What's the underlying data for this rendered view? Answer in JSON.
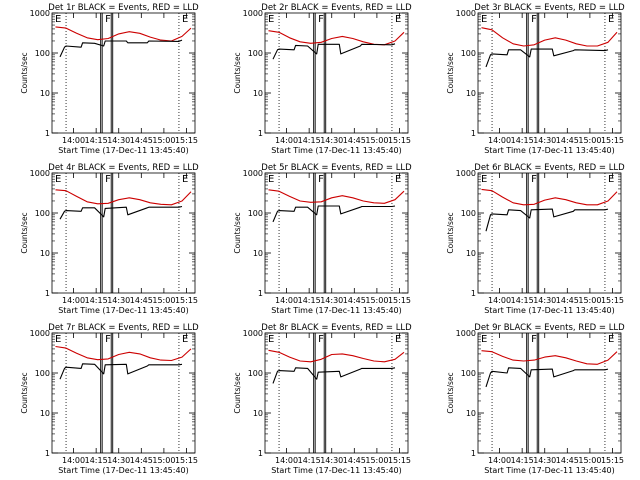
{
  "page": {
    "background": "#ffffff"
  },
  "colors": {
    "events": "#000000",
    "lld": "#cc0000",
    "axis": "#000000"
  },
  "chart_data": [
    {
      "type": "line",
      "title": "Det 1r BLACK = Events, RED = LLD",
      "xlabel": "Start Time (17-Dec-11 13:45:40)",
      "ylabel": "Counts/sec",
      "x_ticks": [
        "14:00",
        "14:15",
        "14:30",
        "14:45",
        "15:00",
        "15:15"
      ],
      "y_ticks": [
        "1",
        "10",
        "100",
        "1000"
      ],
      "ylim": [
        1,
        1000
      ],
      "y_scale": "log",
      "markers": [
        "F",
        "E"
      ],
      "series": [
        {
          "name": "LLD",
          "color": "#cc0000",
          "x": [
            "13:48",
            "13:55",
            "14:02",
            "14:09",
            "14:16",
            "14:23",
            "14:30",
            "14:37",
            "14:44",
            "14:51",
            "14:58",
            "15:05",
            "15:12",
            "15:18"
          ],
          "values": [
            450,
            420,
            310,
            240,
            215,
            230,
            300,
            340,
            310,
            250,
            210,
            200,
            260,
            420
          ]
        },
        {
          "name": "Events",
          "color": "#000000",
          "x": [
            "13:51",
            "13:54",
            "13:55",
            "14:05",
            "14:06",
            "14:14",
            "14:20",
            "14:21",
            "14:35",
            "14:36",
            "14:49",
            "14:50",
            "15:10",
            "15:12"
          ],
          "values": [
            80,
            140,
            150,
            140,
            180,
            175,
            150,
            200,
            200,
            180,
            180,
            200,
            195,
            210
          ]
        }
      ]
    },
    {
      "type": "line",
      "title": "Det 2r BLACK = Events, RED = LLD",
      "xlabel": "Start Time (17-Dec-11 13:45:40)",
      "ylabel": "Counts/sec",
      "x_ticks": [
        "14:00",
        "14:15",
        "14:30",
        "14:45",
        "15:00",
        "15:15"
      ],
      "y_ticks": [
        "1",
        "10",
        "100",
        "1000"
      ],
      "ylim": [
        1,
        1000
      ],
      "y_scale": "log",
      "markers": [
        "F",
        "E"
      ],
      "series": [
        {
          "name": "LLD",
          "color": "#cc0000",
          "x": [
            "13:48",
            "13:55",
            "14:02",
            "14:09",
            "14:16",
            "14:23",
            "14:30",
            "14:37",
            "14:44",
            "14:51",
            "14:58",
            "15:05",
            "15:12",
            "15:18"
          ],
          "values": [
            360,
            330,
            240,
            190,
            175,
            185,
            230,
            260,
            230,
            190,
            165,
            160,
            200,
            330
          ]
        },
        {
          "name": "Events",
          "color": "#000000",
          "x": [
            "13:51",
            "13:54",
            "13:55",
            "14:05",
            "14:06",
            "14:14",
            "14:20",
            "14:21",
            "14:35",
            "14:36",
            "14:49",
            "14:50",
            "15:10",
            "15:12"
          ],
          "values": [
            70,
            120,
            125,
            120,
            155,
            150,
            95,
            165,
            165,
            95,
            150,
            165,
            160,
            170
          ]
        }
      ]
    },
    {
      "type": "line",
      "title": "Det 3r BLACK = Events, RED = LLD",
      "xlabel": "Start Time (17-Dec-11 13:45:40)",
      "ylabel": "Counts/sec",
      "x_ticks": [
        "14:00",
        "14:15",
        "14:30",
        "14:45",
        "15:00",
        "15:15"
      ],
      "y_ticks": [
        "1",
        "10",
        "100",
        "1000"
      ],
      "ylim": [
        1,
        1000
      ],
      "y_scale": "log",
      "markers": [
        "F",
        "E"
      ],
      "series": [
        {
          "name": "LLD",
          "color": "#cc0000",
          "x": [
            "13:48",
            "13:55",
            "14:02",
            "14:09",
            "14:16",
            "14:23",
            "14:30",
            "14:37",
            "14:44",
            "14:51",
            "14:58",
            "15:05",
            "15:12",
            "15:18"
          ],
          "values": [
            430,
            380,
            240,
            170,
            150,
            160,
            210,
            240,
            210,
            170,
            150,
            150,
            185,
            330
          ]
        },
        {
          "name": "Events",
          "color": "#000000",
          "x": [
            "13:51",
            "13:54",
            "13:55",
            "14:05",
            "14:06",
            "14:14",
            "14:20",
            "14:21",
            "14:35",
            "14:36",
            "14:49",
            "14:50",
            "15:10",
            "15:12"
          ],
          "values": [
            45,
            90,
            95,
            90,
            120,
            120,
            80,
            125,
            125,
            85,
            115,
            120,
            115,
            120
          ]
        }
      ]
    },
    {
      "type": "line",
      "title": "Det 4r BLACK = Events, RED = LLD",
      "xlabel": "Start Time (17-Dec-11 13:45:40)",
      "ylabel": "Counts/sec",
      "x_ticks": [
        "14:00",
        "14:15",
        "14:30",
        "14:45",
        "15:00",
        "15:15"
      ],
      "y_ticks": [
        "1",
        "10",
        "100",
        "1000"
      ],
      "ylim": [
        1,
        1000
      ],
      "y_scale": "log",
      "markers": [
        "F",
        "E"
      ],
      "series": [
        {
          "name": "LLD",
          "color": "#cc0000",
          "x": [
            "13:48",
            "13:55",
            "14:02",
            "14:09",
            "14:16",
            "14:23",
            "14:30",
            "14:37",
            "14:44",
            "14:51",
            "14:58",
            "15:05",
            "15:12",
            "15:18"
          ],
          "values": [
            380,
            360,
            260,
            190,
            170,
            175,
            215,
            240,
            215,
            180,
            165,
            160,
            200,
            340
          ]
        },
        {
          "name": "Events",
          "color": "#000000",
          "x": [
            "13:51",
            "13:54",
            "13:55",
            "14:05",
            "14:06",
            "14:14",
            "14:20",
            "14:21",
            "14:35",
            "14:36",
            "14:49",
            "14:50",
            "15:10",
            "15:12"
          ],
          "values": [
            70,
            110,
            115,
            110,
            135,
            135,
            80,
            130,
            140,
            90,
            135,
            140,
            140,
            145
          ]
        }
      ]
    },
    {
      "type": "line",
      "title": "Det 5r BLACK = Events, RED = LLD",
      "xlabel": "Start Time (17-Dec-11 13:45:40)",
      "ylabel": "Counts/sec",
      "x_ticks": [
        "14:00",
        "14:15",
        "14:30",
        "14:45",
        "15:00",
        "15:15"
      ],
      "y_ticks": [
        "1",
        "10",
        "100",
        "1000"
      ],
      "ylim": [
        1,
        1000
      ],
      "y_scale": "log",
      "markers": [
        "F",
        "E"
      ],
      "series": [
        {
          "name": "LLD",
          "color": "#cc0000",
          "x": [
            "13:48",
            "13:55",
            "14:02",
            "14:09",
            "14:16",
            "14:23",
            "14:30",
            "14:37",
            "14:44",
            "14:51",
            "14:58",
            "15:05",
            "15:12",
            "15:18"
          ],
          "values": [
            380,
            350,
            260,
            200,
            185,
            190,
            240,
            270,
            240,
            200,
            180,
            175,
            215,
            350
          ]
        },
        {
          "name": "Events",
          "color": "#000000",
          "x": [
            "13:51",
            "13:54",
            "13:55",
            "14:05",
            "14:06",
            "14:14",
            "14:20",
            "14:21",
            "14:35",
            "14:36",
            "14:49",
            "14:50",
            "15:10",
            "15:12"
          ],
          "values": [
            60,
            110,
            115,
            110,
            140,
            140,
            90,
            150,
            150,
            95,
            140,
            145,
            145,
            150
          ]
        }
      ]
    },
    {
      "type": "line",
      "title": "Det 6r BLACK = Events, RED = LLD",
      "xlabel": "Start Time (17-Dec-11 13:45:40)",
      "ylabel": "Counts/sec",
      "x_ticks": [
        "14:00",
        "14:15",
        "14:30",
        "14:45",
        "15:00",
        "15:15"
      ],
      "y_ticks": [
        "1",
        "10",
        "100",
        "1000"
      ],
      "ylim": [
        1,
        1000
      ],
      "y_scale": "log",
      "markers": [
        "F",
        "E"
      ],
      "series": [
        {
          "name": "LLD",
          "color": "#cc0000",
          "x": [
            "13:48",
            "13:55",
            "14:02",
            "14:09",
            "14:16",
            "14:23",
            "14:30",
            "14:37",
            "14:44",
            "14:51",
            "14:58",
            "15:05",
            "15:12",
            "15:18"
          ],
          "values": [
            390,
            360,
            250,
            180,
            160,
            165,
            210,
            240,
            215,
            180,
            160,
            160,
            200,
            340
          ]
        },
        {
          "name": "Events",
          "color": "#000000",
          "x": [
            "13:51",
            "13:54",
            "13:55",
            "14:05",
            "14:06",
            "14:14",
            "14:20",
            "14:21",
            "14:35",
            "14:36",
            "14:49",
            "14:50",
            "15:10",
            "15:12"
          ],
          "values": [
            35,
            90,
            95,
            90,
            120,
            115,
            75,
            120,
            125,
            80,
            110,
            120,
            120,
            125
          ]
        }
      ]
    },
    {
      "type": "line",
      "title": "Det 7r BLACK = Events, RED = LLD",
      "xlabel": "Start Time (17-Dec-11 13:45:40)",
      "ylabel": "Counts/sec",
      "x_ticks": [
        "14:00",
        "14:15",
        "14:30",
        "14:45",
        "15:00",
        "15:15"
      ],
      "y_ticks": [
        "1",
        "10",
        "100",
        "1000"
      ],
      "ylim": [
        1,
        1000
      ],
      "y_scale": "log",
      "markers": [
        "F",
        "E"
      ],
      "series": [
        {
          "name": "LLD",
          "color": "#cc0000",
          "x": [
            "13:48",
            "13:55",
            "14:02",
            "14:09",
            "14:16",
            "14:23",
            "14:30",
            "14:37",
            "14:44",
            "14:51",
            "14:58",
            "15:05",
            "15:12",
            "15:18"
          ],
          "values": [
            460,
            420,
            310,
            240,
            215,
            225,
            290,
            330,
            300,
            240,
            210,
            205,
            250,
            400
          ]
        },
        {
          "name": "Events",
          "color": "#000000",
          "x": [
            "13:51",
            "13:54",
            "13:55",
            "14:05",
            "14:06",
            "14:14",
            "14:20",
            "14:21",
            "14:35",
            "14:36",
            "14:49",
            "14:50",
            "15:10",
            "15:12"
          ],
          "values": [
            70,
            130,
            140,
            130,
            170,
            165,
            95,
            160,
            165,
            95,
            150,
            160,
            160,
            165
          ]
        }
      ]
    },
    {
      "type": "line",
      "title": "Det 8r BLACK = Events, RED = LLD",
      "xlabel": "Start Time (17-Dec-11 13:45:40)",
      "ylabel": "Counts/sec",
      "x_ticks": [
        "14:00",
        "14:15",
        "14:30",
        "14:45",
        "15:00",
        "15:15"
      ],
      "y_ticks": [
        "1",
        "10",
        "100",
        "1000"
      ],
      "ylim": [
        1,
        1000
      ],
      "y_scale": "log",
      "markers": [
        "F",
        "E"
      ],
      "series": [
        {
          "name": "LLD",
          "color": "#cc0000",
          "x": [
            "13:48",
            "13:55",
            "14:02",
            "14:09",
            "14:16",
            "14:23",
            "14:30",
            "14:37",
            "14:44",
            "14:51",
            "14:58",
            "15:05",
            "15:12",
            "15:18"
          ],
          "values": [
            370,
            330,
            250,
            200,
            190,
            220,
            290,
            300,
            270,
            230,
            200,
            190,
            220,
            330
          ]
        },
        {
          "name": "Events",
          "color": "#000000",
          "x": [
            "13:51",
            "13:54",
            "13:55",
            "14:05",
            "14:06",
            "14:14",
            "14:20",
            "14:21",
            "14:35",
            "14:36",
            "14:49",
            "14:50",
            "15:10",
            "15:12"
          ],
          "values": [
            55,
            110,
            115,
            110,
            135,
            130,
            70,
            105,
            110,
            80,
            125,
            130,
            130,
            135
          ]
        }
      ]
    },
    {
      "type": "line",
      "title": "Det 9r BLACK = Events, RED = LLD",
      "xlabel": "Start Time (17-Dec-11 13:45:40)",
      "ylabel": "Counts/sec",
      "x_ticks": [
        "14:00",
        "14:15",
        "14:30",
        "14:45",
        "15:00",
        "15:15"
      ],
      "y_ticks": [
        "1",
        "10",
        "100",
        "1000"
      ],
      "ylim": [
        1,
        1000
      ],
      "y_scale": "log",
      "markers": [
        "F",
        "E"
      ],
      "series": [
        {
          "name": "LLD",
          "color": "#cc0000",
          "x": [
            "13:48",
            "13:55",
            "14:02",
            "14:09",
            "14:16",
            "14:23",
            "14:30",
            "14:37",
            "14:44",
            "14:51",
            "14:58",
            "15:05",
            "15:12",
            "15:18"
          ],
          "values": [
            360,
            340,
            260,
            210,
            200,
            210,
            250,
            270,
            240,
            200,
            170,
            165,
            210,
            340
          ]
        },
        {
          "name": "Events",
          "color": "#000000",
          "x": [
            "13:51",
            "13:54",
            "13:55",
            "14:05",
            "14:06",
            "14:14",
            "14:20",
            "14:21",
            "14:35",
            "14:36",
            "14:49",
            "14:50",
            "15:10",
            "15:12"
          ],
          "values": [
            45,
            100,
            110,
            100,
            135,
            130,
            80,
            120,
            125,
            80,
            115,
            120,
            120,
            125
          ]
        }
      ]
    }
  ]
}
